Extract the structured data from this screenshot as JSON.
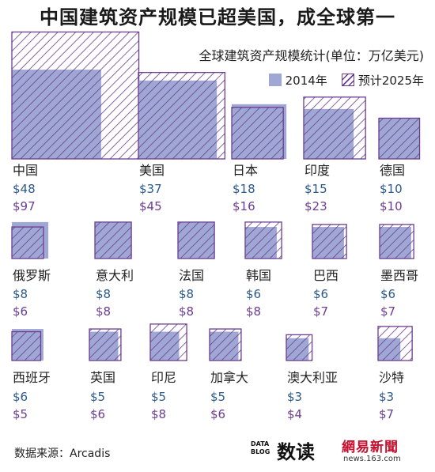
{
  "header": {
    "title": "中国建筑资产规模已超美国，成全球第一",
    "subtitle": "全球建筑资产规模统计(单位：万亿美元)"
  },
  "legend": {
    "label_2014": "2014年",
    "label_2025": "预计2025年"
  },
  "footer": {
    "source": "数据来源：Arcadis",
    "datablog_line1": "DATA",
    "datablog_line2": "BLOG",
    "shudu": "数读",
    "netease": "網易新聞",
    "netease_url": "news.163.com"
  },
  "colors": {
    "value_2014": "#9fa8d4",
    "value_2025": "#6b3d8f",
    "text_2014": "#2c5a8a",
    "text_2025": "#6b3d8f"
  },
  "chart_data": {
    "type": "area-proportional square chart",
    "unit": "万亿美元",
    "series": [
      {
        "name": "2014年",
        "values": [
          48,
          37,
          18,
          15,
          10,
          8,
          8,
          8,
          6,
          6,
          6,
          6,
          5,
          5,
          5,
          3,
          3
        ]
      },
      {
        "name": "预计2025年",
        "values": [
          97,
          45,
          16,
          23,
          10,
          6,
          8,
          8,
          8,
          7,
          7,
          5,
          6,
          8,
          6,
          4,
          7
        ]
      }
    ],
    "categories": [
      "中国",
      "美国",
      "日本",
      "印度",
      "德国",
      "俄罗斯",
      "意大利",
      "法国",
      "韩国",
      "巴西",
      "墨西哥",
      "西班牙",
      "英国",
      "印尼",
      "加拿大",
      "澳大利亚",
      "沙特"
    ],
    "labels_2014": [
      "$48",
      "$37",
      "$18",
      "$15",
      "$10",
      "$8",
      "$8",
      "$8",
      "$6",
      "$6",
      "$6",
      "$6",
      "$5",
      "$5",
      "$5",
      "$3",
      "$3"
    ],
    "labels_2025": [
      "$97",
      "$45",
      "$16",
      "$23",
      "$10",
      "$6",
      "$8",
      "$8",
      "$8",
      "$7",
      "$7",
      "$5",
      "$6",
      "$8",
      "$6",
      "$4",
      "$7"
    ]
  }
}
